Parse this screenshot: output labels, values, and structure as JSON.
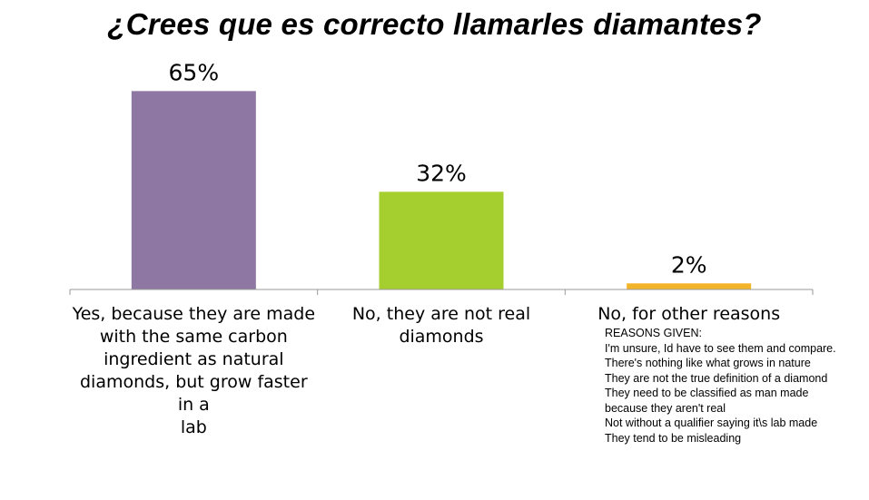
{
  "title": "¿Crees que es correcto llamarles diamantes?",
  "chart_data": {
    "type": "bar",
    "title": "¿Crees que es correcto llamarles diamantes?",
    "categories": [
      "Yes, because they are made with the same carbon ingredient as natural diamonds, but grow faster in a lab",
      "No, they are not real diamonds",
      "No, for other reasons"
    ],
    "category_lines": [
      [
        "Yes, because they are made",
        "with the same carbon",
        "ingredient as natural",
        "diamonds, but grow faster in a",
        "lab"
      ],
      [
        "No, they are not real",
        "diamonds"
      ],
      [
        "No, for other reasons"
      ]
    ],
    "values": [
      65,
      32,
      2
    ],
    "data_labels": [
      "65%",
      "32%",
      "2%"
    ],
    "colors": [
      "#8e78a3",
      "#a5cf2e",
      "#f4b42a"
    ],
    "ylim": [
      0,
      66
    ],
    "xlabel": "",
    "ylabel": "",
    "grid": false,
    "legend": "none"
  },
  "reasons": {
    "heading": "REASONS GIVEN:",
    "items": [
      "I'm unsure, Id have to see them and compare.",
      "There's nothing like what grows in nature",
      "They are not the true definition of a diamond",
      "They need to be classified as man made because they aren't real",
      "Not without a qualifier saying it\\s lab made",
      "They tend to be misleading"
    ]
  }
}
